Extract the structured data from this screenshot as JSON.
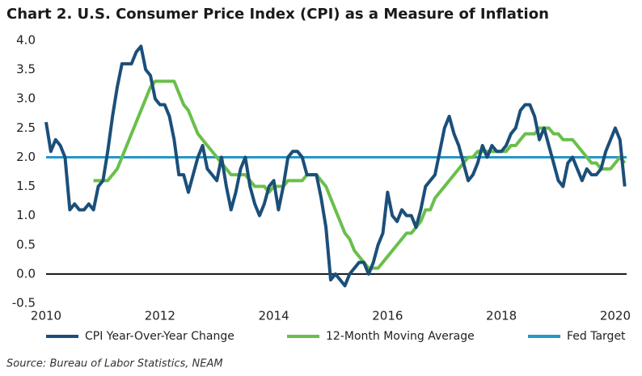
{
  "chart_data": {
    "type": "line",
    "title": "Chart 2. U.S. Consumer Price Index (CPI) as a Measure of Inflation",
    "source": "Source: Bureau of Labor Statistics, NEAM",
    "x": [
      2010,
      2010.083,
      2010.167,
      2010.25,
      2010.333,
      2010.417,
      2010.5,
      2010.583,
      2010.667,
      2010.75,
      2010.833,
      2010.917,
      2011,
      2011.083,
      2011.167,
      2011.25,
      2011.333,
      2011.417,
      2011.5,
      2011.583,
      2011.667,
      2011.75,
      2011.833,
      2011.917,
      2012,
      2012.083,
      2012.167,
      2012.25,
      2012.333,
      2012.417,
      2012.5,
      2012.583,
      2012.667,
      2012.75,
      2012.833,
      2012.917,
      2013,
      2013.083,
      2013.167,
      2013.25,
      2013.333,
      2013.417,
      2013.5,
      2013.583,
      2013.667,
      2013.75,
      2013.833,
      2013.917,
      2014,
      2014.083,
      2014.167,
      2014.25,
      2014.333,
      2014.417,
      2014.5,
      2014.583,
      2014.667,
      2014.75,
      2014.833,
      2014.917,
      2015,
      2015.083,
      2015.167,
      2015.25,
      2015.333,
      2015.417,
      2015.5,
      2015.583,
      2015.667,
      2015.75,
      2015.833,
      2015.917,
      2016,
      2016.083,
      2016.167,
      2016.25,
      2016.333,
      2016.417,
      2016.5,
      2016.583,
      2016.667,
      2016.75,
      2016.833,
      2016.917,
      2017,
      2017.083,
      2017.167,
      2017.25,
      2017.333,
      2017.417,
      2017.5,
      2017.583,
      2017.667,
      2017.75,
      2017.833,
      2017.917,
      2018,
      2018.083,
      2018.167,
      2018.25,
      2018.333,
      2018.417,
      2018.5,
      2018.583,
      2018.667,
      2018.75,
      2018.833,
      2018.917,
      2019,
      2019.083,
      2019.167,
      2019.25,
      2019.333,
      2019.417,
      2019.5,
      2019.583,
      2019.667,
      2019.75,
      2019.833,
      2019.917,
      2020,
      2020.083,
      2020.167
    ],
    "series": [
      {
        "name": "CPI Year-Over-Year Change",
        "color": "#1b4f7a",
        "values": [
          2.6,
          2.1,
          2.3,
          2.2,
          2.0,
          1.1,
          1.2,
          1.1,
          1.1,
          1.2,
          1.1,
          1.5,
          1.6,
          2.1,
          2.7,
          3.2,
          3.6,
          3.6,
          3.6,
          3.8,
          3.9,
          3.5,
          3.4,
          3.0,
          2.9,
          2.9,
          2.7,
          2.3,
          1.7,
          1.7,
          1.4,
          1.7,
          2.0,
          2.2,
          1.8,
          1.7,
          1.6,
          2.0,
          1.5,
          1.1,
          1.4,
          1.8,
          2.0,
          1.5,
          1.2,
          1.0,
          1.2,
          1.5,
          1.6,
          1.1,
          1.5,
          2.0,
          2.1,
          2.1,
          2.0,
          1.7,
          1.7,
          1.7,
          1.3,
          0.8,
          -0.1,
          0.0,
          -0.1,
          -0.2,
          0.0,
          0.1,
          0.2,
          0.2,
          0.0,
          0.2,
          0.5,
          0.7,
          1.4,
          1.0,
          0.9,
          1.1,
          1.0,
          1.0,
          0.8,
          1.1,
          1.5,
          1.6,
          1.7,
          2.1,
          2.5,
          2.7,
          2.4,
          2.2,
          1.9,
          1.6,
          1.7,
          1.9,
          2.2,
          2.0,
          2.2,
          2.1,
          2.1,
          2.2,
          2.4,
          2.5,
          2.8,
          2.9,
          2.9,
          2.7,
          2.3,
          2.5,
          2.2,
          1.9,
          1.6,
          1.5,
          1.9,
          2.0,
          1.8,
          1.6,
          1.8,
          1.7,
          1.7,
          1.8,
          2.1,
          2.3,
          2.5,
          2.3,
          1.5
        ]
      },
      {
        "name": "12-Month Moving Average",
        "color": "#6abf4b",
        "values": [
          null,
          null,
          null,
          null,
          null,
          null,
          null,
          null,
          null,
          null,
          1.6,
          1.6,
          1.6,
          1.6,
          1.7,
          1.8,
          2.0,
          2.2,
          2.4,
          2.6,
          2.8,
          3.0,
          3.2,
          3.3,
          3.3,
          3.3,
          3.3,
          3.3,
          3.1,
          2.9,
          2.8,
          2.6,
          2.4,
          2.3,
          2.2,
          2.1,
          2.0,
          1.9,
          1.8,
          1.7,
          1.7,
          1.7,
          1.7,
          1.6,
          1.5,
          1.5,
          1.5,
          1.4,
          1.5,
          1.5,
          1.5,
          1.6,
          1.6,
          1.6,
          1.6,
          1.7,
          1.7,
          1.7,
          1.6,
          1.5,
          1.3,
          1.1,
          0.9,
          0.7,
          0.6,
          0.4,
          0.3,
          0.2,
          0.1,
          0.1,
          0.1,
          0.2,
          0.3,
          0.4,
          0.5,
          0.6,
          0.7,
          0.7,
          0.8,
          0.9,
          1.1,
          1.1,
          1.3,
          1.4,
          1.5,
          1.6,
          1.7,
          1.8,
          1.9,
          2.0,
          2.0,
          2.1,
          2.1,
          2.1,
          2.1,
          2.1,
          2.1,
          2.1,
          2.2,
          2.2,
          2.3,
          2.4,
          2.4,
          2.4,
          2.5,
          2.5,
          2.5,
          2.4,
          2.4,
          2.3,
          2.3,
          2.3,
          2.2,
          2.1,
          2.0,
          1.9,
          1.9,
          1.8,
          1.8,
          1.8,
          1.9,
          2.0,
          1.9
        ]
      }
    ],
    "reference_line": {
      "name": "Fed Target",
      "value": 2.0,
      "color": "#2596c8"
    },
    "xlim": [
      2010,
      2020.2
    ],
    "xticks": [
      2010,
      2012,
      2014,
      2016,
      2018,
      2020
    ],
    "ylim": [
      -0.5,
      4.0
    ],
    "yticks": [
      {
        "value": -0.5,
        "label": "-0.5"
      },
      {
        "value": 0,
        "label": "0.0"
      },
      {
        "value": 0.5,
        "label": "0.5"
      },
      {
        "value": 1,
        "label": "1.0"
      },
      {
        "value": 1.5,
        "label": "1.5"
      },
      {
        "value": 2,
        "label": "2.0"
      },
      {
        "value": 2.5,
        "label": "2.5"
      },
      {
        "value": 3,
        "label": "3.0"
      },
      {
        "value": 3.5,
        "label": "3.5"
      },
      {
        "value": 4,
        "label": "4.0"
      }
    ]
  }
}
